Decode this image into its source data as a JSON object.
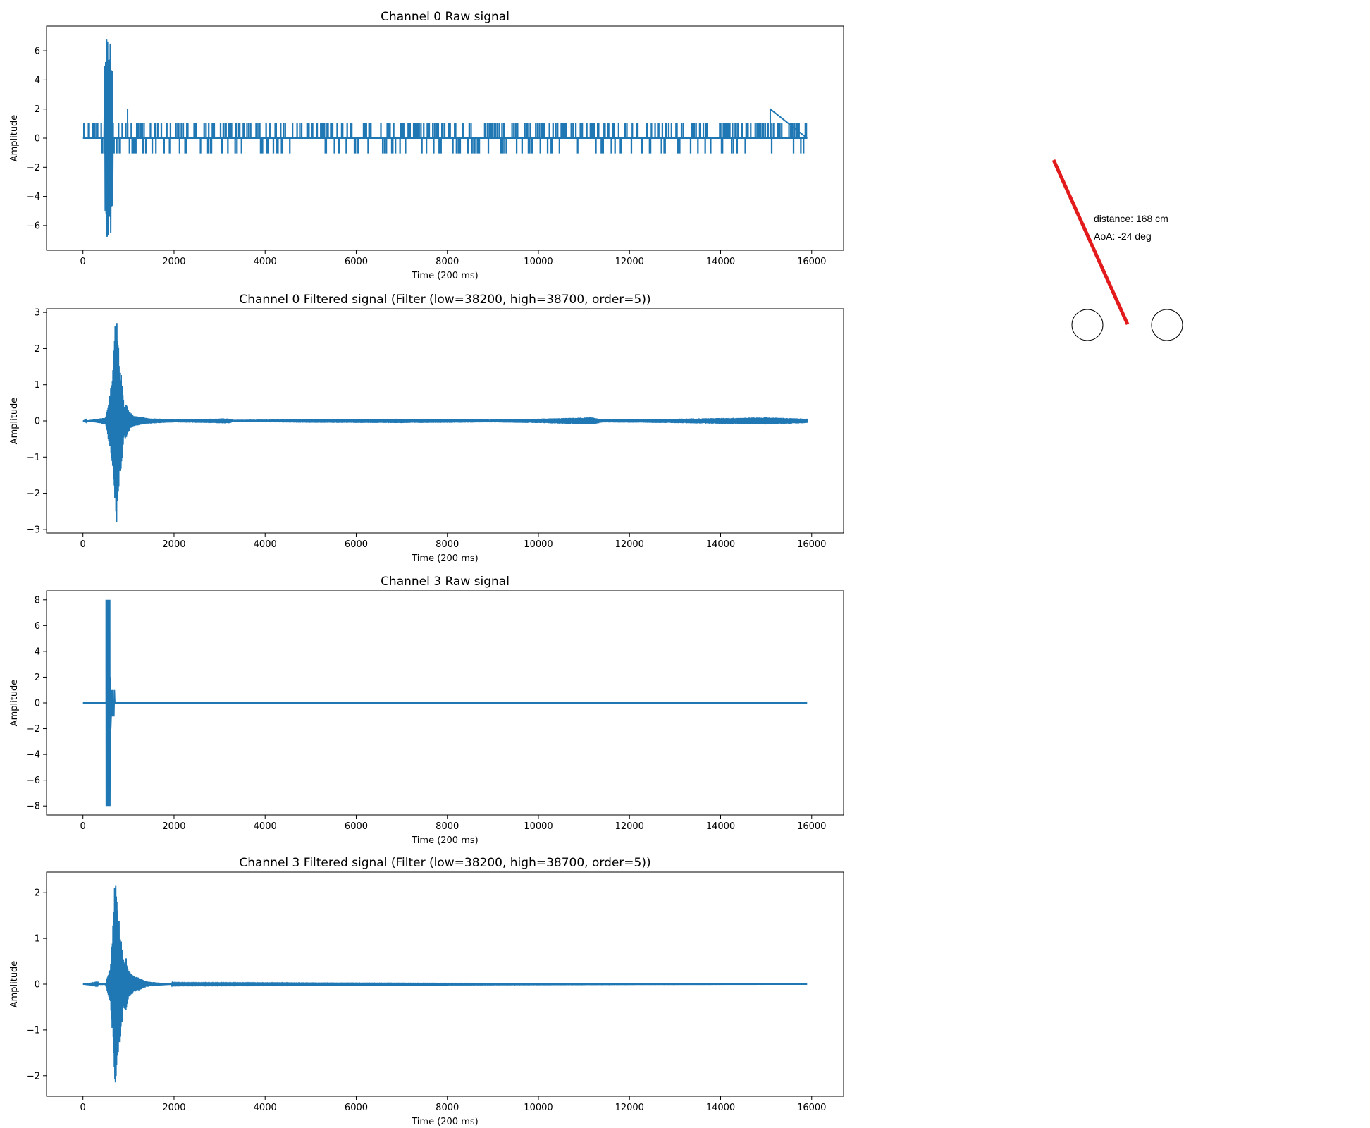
{
  "chart_data": [
    {
      "type": "line",
      "title": "Channel 0 Raw signal",
      "xlabel": "Time (200 ms)",
      "ylabel": "Amplitude",
      "xlim": [
        -800,
        16700
      ],
      "ylim": [
        -7.7,
        7.7
      ],
      "xticks": [
        0,
        2000,
        4000,
        6000,
        8000,
        10000,
        12000,
        14000,
        16000
      ],
      "yticks": [
        -6,
        -4,
        -2,
        0,
        2,
        4,
        6
      ],
      "grid": false,
      "color": "#1f77b4",
      "series": [
        {
          "kind": "spiky",
          "x_range": [
            0,
            15900
          ],
          "burst": {
            "start": 470,
            "end": 650,
            "min": -7,
            "max": 7
          },
          "noise_spikes": [
            {
              "x": 980,
              "y": 2
            },
            {
              "x": 15090,
              "y": 2
            }
          ],
          "noise_level": [
            -1,
            1
          ]
        }
      ]
    },
    {
      "type": "line",
      "title": "Channel 0 Filtered signal (Filter (low=38200, high=38700, order=5))",
      "xlabel": "Time (200 ms)",
      "ylabel": "Amplitude",
      "xlim": [
        -800,
        16700
      ],
      "ylim": [
        -3.1,
        3.1
      ],
      "xticks": [
        0,
        2000,
        4000,
        6000,
        8000,
        10000,
        12000,
        14000,
        16000
      ],
      "yticks": [
        -3,
        -2,
        -1,
        0,
        1,
        2,
        3
      ],
      "grid": false,
      "color": "#1f77b4",
      "series": [
        {
          "kind": "envelope",
          "x_range": [
            0,
            15900
          ],
          "envelope": [
            [
              0,
              0.0
            ],
            [
              300,
              0.05
            ],
            [
              500,
              0.1
            ],
            [
              600,
              0.8
            ],
            [
              650,
              1.2
            ],
            [
              700,
              2.6
            ],
            [
              740,
              2.85
            ],
            [
              760,
              2.5
            ],
            [
              800,
              1.6
            ],
            [
              850,
              1.2
            ],
            [
              900,
              0.45
            ],
            [
              950,
              0.5
            ],
            [
              1000,
              0.3
            ],
            [
              1100,
              0.15
            ],
            [
              1400,
              0.08
            ],
            [
              2000,
              0.04
            ],
            [
              3200,
              0.07
            ],
            [
              3300,
              0.03
            ],
            [
              5000,
              0.05
            ],
            [
              7000,
              0.06
            ],
            [
              9000,
              0.04
            ],
            [
              10000,
              0.06
            ],
            [
              11200,
              0.1
            ],
            [
              11400,
              0.04
            ],
            [
              13000,
              0.06
            ],
            [
              15000,
              0.1
            ],
            [
              15900,
              0.06
            ]
          ]
        }
      ]
    },
    {
      "type": "line",
      "title": "Channel 3 Raw signal",
      "xlabel": "Time (200 ms)",
      "ylabel": "Amplitude",
      "xlim": [
        -800,
        16700
      ],
      "ylim": [
        -8.7,
        8.7
      ],
      "xticks": [
        0,
        2000,
        4000,
        6000,
        8000,
        10000,
        12000,
        14000,
        16000
      ],
      "yticks": [
        -8,
        -6,
        -4,
        -2,
        0,
        2,
        4,
        6,
        8
      ],
      "grid": false,
      "color": "#1f77b4",
      "series": [
        {
          "kind": "burst",
          "x_range": [
            0,
            15900
          ],
          "burst": {
            "start": 510,
            "end": 690,
            "min": -8,
            "max": 8
          },
          "tail": [
            [
              600,
              2
            ],
            [
              640,
              1
            ],
            [
              680,
              -1
            ],
            [
              700,
              0
            ]
          ]
        }
      ]
    },
    {
      "type": "line",
      "title": "Channel 3 Filtered signal (Filter (low=38200, high=38700, order=5))",
      "xlabel": "Time (200 ms)",
      "ylabel": "Amplitude",
      "xlim": [
        -800,
        16700
      ],
      "ylim": [
        -2.45,
        2.45
      ],
      "xticks": [
        0,
        2000,
        4000,
        6000,
        8000,
        10000,
        12000,
        14000,
        16000
      ],
      "yticks": [
        -2,
        -1,
        0,
        1,
        2
      ],
      "grid": false,
      "color": "#1f77b4",
      "series": [
        {
          "kind": "envelope",
          "x_range": [
            0,
            15900
          ],
          "envelope": [
            [
              0,
              0.0
            ],
            [
              500,
              0.02
            ],
            [
              600,
              0.4
            ],
            [
              650,
              1.1
            ],
            [
              700,
              2.3
            ],
            [
              740,
              2.0
            ],
            [
              800,
              1.3
            ],
            [
              850,
              0.9
            ],
            [
              900,
              0.5
            ],
            [
              950,
              0.6
            ],
            [
              1000,
              0.3
            ],
            [
              1100,
              0.2
            ],
            [
              1200,
              0.15
            ],
            [
              1400,
              0.06
            ],
            [
              1700,
              0.03
            ],
            [
              2000,
              0.01
            ],
            [
              15900,
              0.0
            ]
          ]
        }
      ]
    }
  ],
  "aoa_display": {
    "distance_text": "distance: 168 cm",
    "aoa_text": "AoA: -24 deg",
    "angle_deg": -24,
    "line_color": "#e31a1c"
  }
}
